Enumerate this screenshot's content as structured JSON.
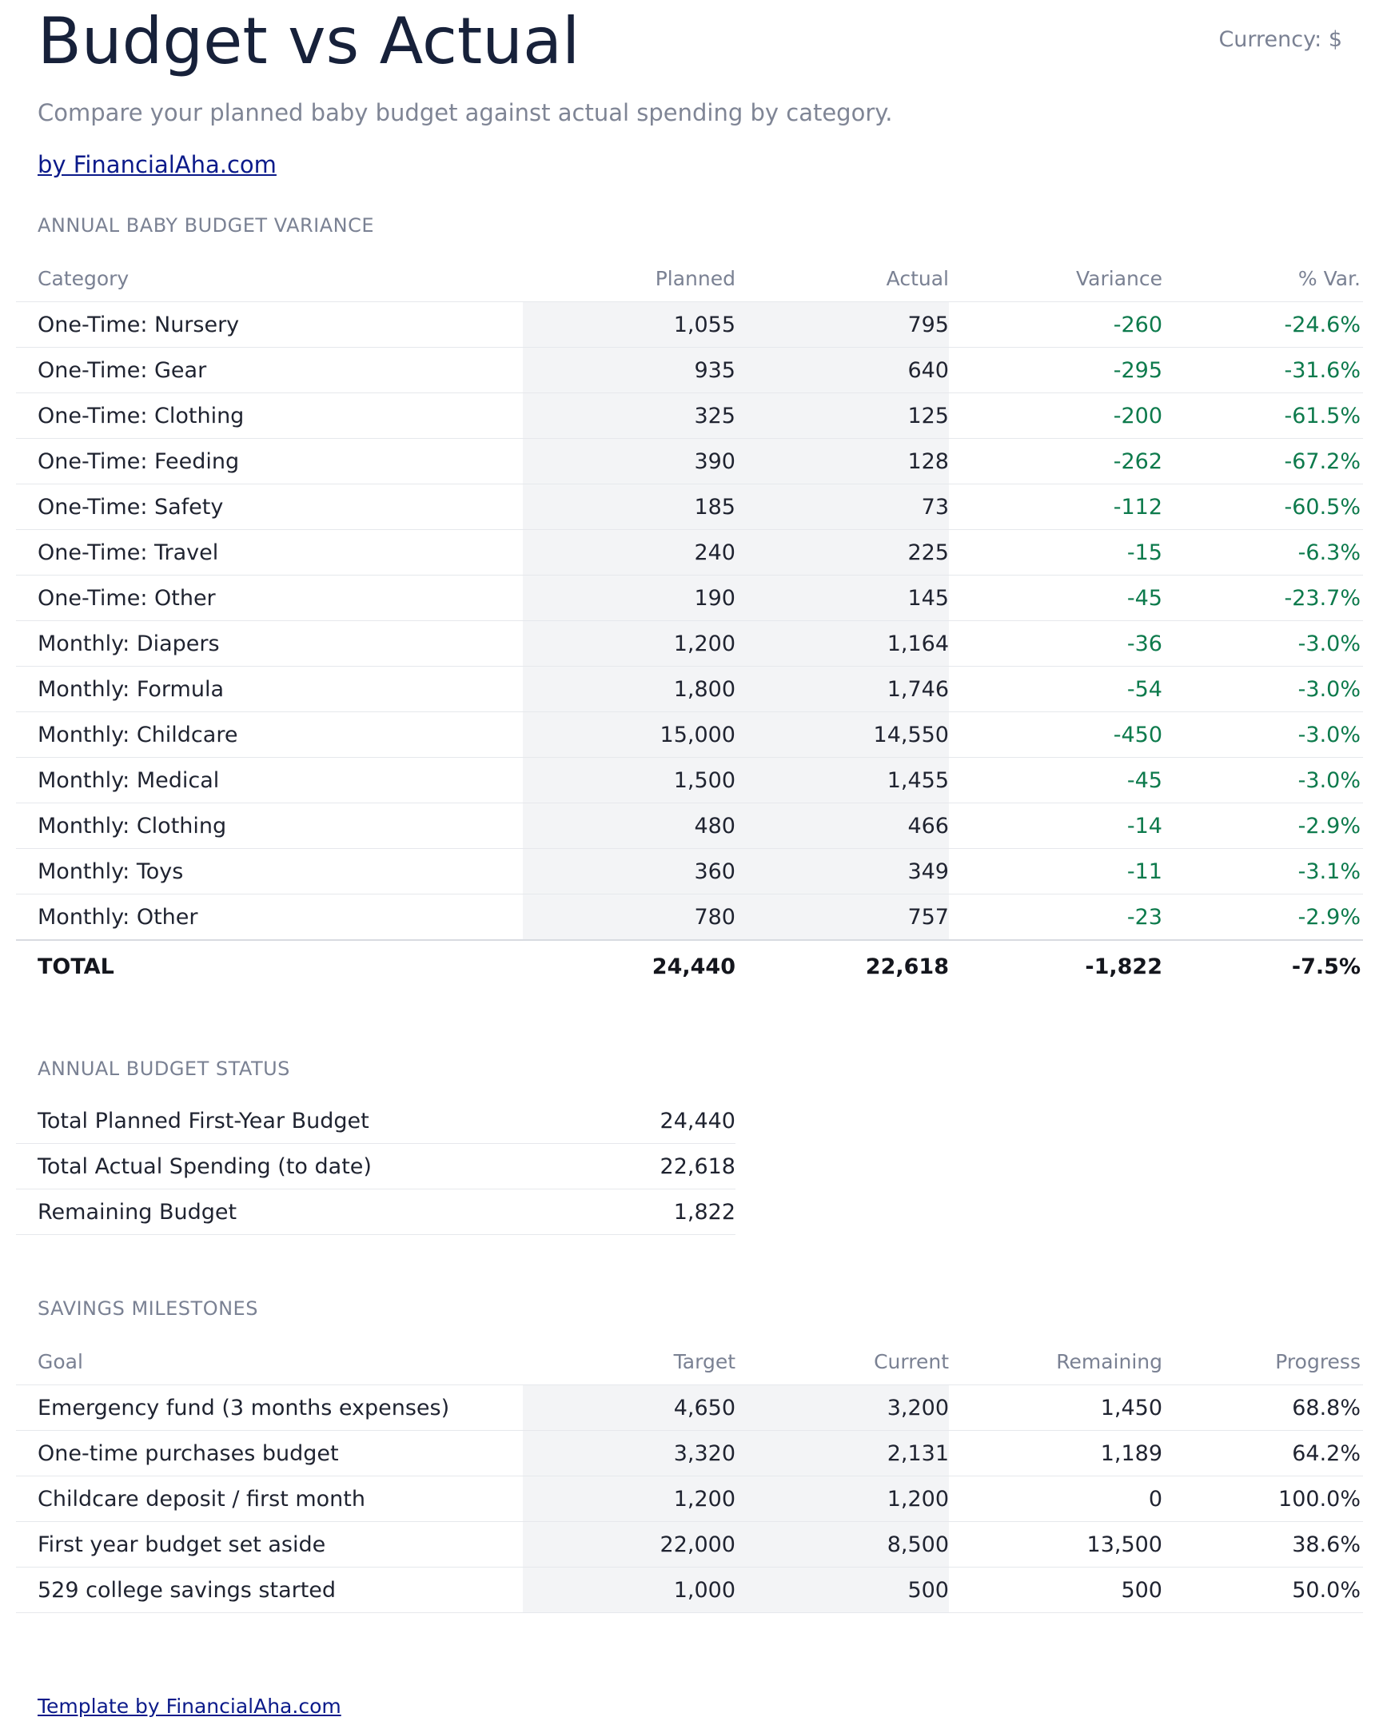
{
  "header": {
    "title": "Budget vs Actual",
    "currency": "Currency: $",
    "subtitle": "Compare your planned baby budget against actual spending by category.",
    "byline": "by FinancialAha.com"
  },
  "variance": {
    "section_title": "ANNUAL BABY BUDGET VARIANCE",
    "columns": [
      "Category",
      "Planned",
      "Actual",
      "Variance",
      "% Var."
    ],
    "rows": [
      {
        "category": "One-Time: Nursery",
        "planned": "1,055",
        "actual": "795",
        "variance": "-260",
        "pct": "-24.6%"
      },
      {
        "category": "One-Time: Gear",
        "planned": "935",
        "actual": "640",
        "variance": "-295",
        "pct": "-31.6%"
      },
      {
        "category": "One-Time: Clothing",
        "planned": "325",
        "actual": "125",
        "variance": "-200",
        "pct": "-61.5%"
      },
      {
        "category": "One-Time: Feeding",
        "planned": "390",
        "actual": "128",
        "variance": "-262",
        "pct": "-67.2%"
      },
      {
        "category": "One-Time: Safety",
        "planned": "185",
        "actual": "73",
        "variance": "-112",
        "pct": "-60.5%"
      },
      {
        "category": "One-Time: Travel",
        "planned": "240",
        "actual": "225",
        "variance": "-15",
        "pct": "-6.3%"
      },
      {
        "category": "One-Time: Other",
        "planned": "190",
        "actual": "145",
        "variance": "-45",
        "pct": "-23.7%"
      },
      {
        "category": "Monthly: Diapers",
        "planned": "1,200",
        "actual": "1,164",
        "variance": "-36",
        "pct": "-3.0%"
      },
      {
        "category": "Monthly: Formula",
        "planned": "1,800",
        "actual": "1,746",
        "variance": "-54",
        "pct": "-3.0%"
      },
      {
        "category": "Monthly: Childcare",
        "planned": "15,000",
        "actual": "14,550",
        "variance": "-450",
        "pct": "-3.0%"
      },
      {
        "category": "Monthly: Medical",
        "planned": "1,500",
        "actual": "1,455",
        "variance": "-45",
        "pct": "-3.0%"
      },
      {
        "category": "Monthly: Clothing",
        "planned": "480",
        "actual": "466",
        "variance": "-14",
        "pct": "-2.9%"
      },
      {
        "category": "Monthly: Toys",
        "planned": "360",
        "actual": "349",
        "variance": "-11",
        "pct": "-3.1%"
      },
      {
        "category": "Monthly: Other",
        "planned": "780",
        "actual": "757",
        "variance": "-23",
        "pct": "-2.9%"
      }
    ],
    "total": {
      "label": "TOTAL",
      "planned": "24,440",
      "actual": "22,618",
      "variance": "-1,822",
      "pct": "-7.5%"
    }
  },
  "status": {
    "section_title": "ANNUAL BUDGET STATUS",
    "rows": [
      {
        "label": "Total Planned First-Year Budget",
        "value": "24,440"
      },
      {
        "label": "Total Actual Spending (to date)",
        "value": "22,618"
      },
      {
        "label": "Remaining Budget",
        "value": "1,822"
      }
    ]
  },
  "milestones": {
    "section_title": "SAVINGS MILESTONES",
    "columns": [
      "Goal",
      "Target",
      "Current",
      "Remaining",
      "Progress"
    ],
    "rows": [
      {
        "goal": "Emergency fund (3 months expenses)",
        "target": "4,650",
        "current": "3,200",
        "remaining": "1,450",
        "progress": "68.8%"
      },
      {
        "goal": "One-time purchases budget",
        "target": "3,320",
        "current": "2,131",
        "remaining": "1,189",
        "progress": "64.2%"
      },
      {
        "goal": "Childcare deposit / first month",
        "target": "1,200",
        "current": "1,200",
        "remaining": "0",
        "progress": "100.0%"
      },
      {
        "goal": "First year budget set aside",
        "target": "22,000",
        "current": "8,500",
        "remaining": "13,500",
        "progress": "38.6%"
      },
      {
        "goal": "529 college savings started",
        "target": "1,000",
        "current": "500",
        "remaining": "500",
        "progress": "50.0%"
      }
    ]
  },
  "footer": {
    "link": "Template by FinancialAha.com"
  },
  "colors": {
    "title": "#17213a",
    "muted": "#7a8193",
    "link": "#0b1a8a",
    "negative_variance": "#0d7a4c",
    "shaded_column": "#f3f4f6"
  }
}
